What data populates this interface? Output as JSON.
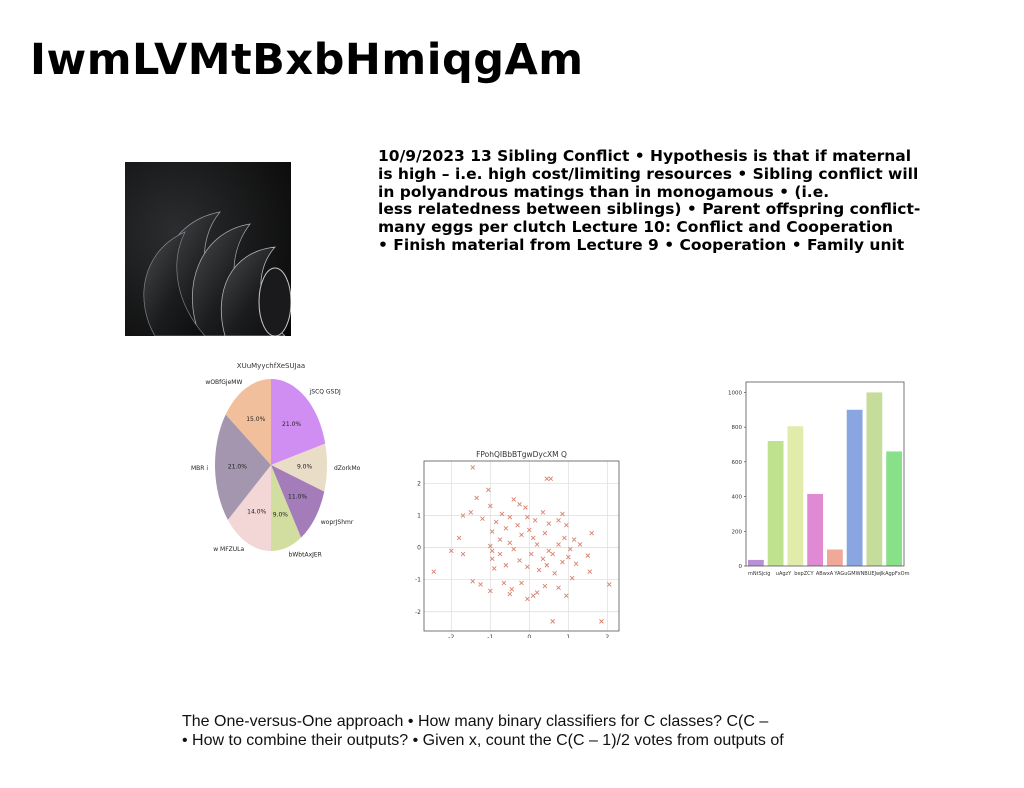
{
  "slide": {
    "title": "IwmLVMtBxbHmiqgAm",
    "text_lines": [
      "10/9/2023 13 Sibling Conflict • Hypothesis is that if maternal",
      "is high – i.e. high cost/limiting resources • Sibling conflict will",
      "in polyandrous matings than in monogamous • (i.e.",
      "less relatedness between siblings) • Parent offspring conflict-",
      "many eggs per clutch Lecture 10: Conflict and Cooperation",
      "• Finish material from Lecture 9 • Cooperation • Family unit"
    ],
    "bottom_lines": [
      "The One-versus-One approach • How many binary classifiers for C classes? C(C –",
      "• How to combine their outputs? • Given x, count the C(C – 1)/2 votes from outputs of"
    ]
  },
  "chart_data": [
    {
      "type": "pie",
      "title": "XUuMyychfXeSUJaa",
      "categories": [
        "jSCQ GSDJ",
        "dZorkMo",
        "woprJShmr",
        "bWbtAxJER",
        "w MFZULa",
        "MBR i",
        "wOBfGjeMW"
      ],
      "values": [
        21.0,
        9.0,
        11.0,
        9.0,
        14.0,
        21.0,
        15.0
      ],
      "labels": [
        "21.0%",
        "9.0%",
        "11.0%",
        "9.0%",
        "14.0%",
        "21.0%",
        "15.0%"
      ],
      "colors": [
        "#d08ef2",
        "#eaddc8",
        "#a47cba",
        "#d2dea0",
        "#f3d6d6",
        "#a396ae",
        "#f2bf9c"
      ]
    },
    {
      "type": "scatter",
      "title": "FPohQIBbBTgwDycXM Q",
      "xlim": [
        -2.7,
        2.3
      ],
      "ylim": [
        -2.6,
        2.7
      ],
      "xticks": [
        -2,
        -1,
        0,
        1,
        2
      ],
      "yticks": [
        -2,
        -1,
        0,
        1,
        2
      ],
      "grid": true,
      "marker": "x",
      "color": "#d9826e",
      "points": [
        [
          -1.45,
          2.5
        ],
        [
          0.45,
          2.15
        ],
        [
          0.55,
          2.15
        ],
        [
          -1.05,
          1.8
        ],
        [
          -1.35,
          1.55
        ],
        [
          -0.4,
          1.5
        ],
        [
          -0.25,
          1.35
        ],
        [
          -1.0,
          1.3
        ],
        [
          -0.1,
          1.25
        ],
        [
          -1.5,
          1.1
        ],
        [
          -1.7,
          1.0
        ],
        [
          -0.7,
          1.05
        ],
        [
          0.35,
          1.1
        ],
        [
          0.85,
          1.05
        ],
        [
          -1.2,
          0.9
        ],
        [
          -0.5,
          0.95
        ],
        [
          -0.05,
          0.95
        ],
        [
          -0.85,
          0.8
        ],
        [
          0.15,
          0.85
        ],
        [
          0.75,
          0.85
        ],
        [
          -0.3,
          0.7
        ],
        [
          0.5,
          0.75
        ],
        [
          0.95,
          0.7
        ],
        [
          -0.6,
          0.6
        ],
        [
          -0.95,
          0.5
        ],
        [
          0.0,
          0.55
        ],
        [
          -0.2,
          0.4
        ],
        [
          0.4,
          0.45
        ],
        [
          1.6,
          0.45
        ],
        [
          -1.8,
          0.3
        ],
        [
          -0.75,
          0.25
        ],
        [
          0.1,
          0.3
        ],
        [
          0.9,
          0.3
        ],
        [
          1.15,
          0.25
        ],
        [
          -0.5,
          0.15
        ],
        [
          -1.0,
          0.05
        ],
        [
          0.2,
          0.1
        ],
        [
          0.75,
          0.1
        ],
        [
          1.3,
          0.1
        ],
        [
          -2.0,
          -0.1
        ],
        [
          -0.95,
          -0.1
        ],
        [
          -0.4,
          -0.05
        ],
        [
          0.5,
          -0.1
        ],
        [
          1.05,
          -0.05
        ],
        [
          -1.7,
          -0.2
        ],
        [
          -0.75,
          -0.2
        ],
        [
          0.05,
          -0.2
        ],
        [
          0.6,
          -0.2
        ],
        [
          1.0,
          -0.3
        ],
        [
          1.5,
          -0.25
        ],
        [
          -0.95,
          -0.35
        ],
        [
          -0.25,
          -0.4
        ],
        [
          0.35,
          -0.35
        ],
        [
          0.85,
          -0.45
        ],
        [
          1.2,
          -0.5
        ],
        [
          -0.6,
          -0.55
        ],
        [
          -0.05,
          -0.6
        ],
        [
          0.45,
          -0.55
        ],
        [
          1.55,
          -0.75
        ],
        [
          -2.45,
          -0.75
        ],
        [
          -0.9,
          -0.65
        ],
        [
          0.25,
          -0.7
        ],
        [
          0.65,
          -0.8
        ],
        [
          1.1,
          -0.95
        ],
        [
          -1.45,
          -1.05
        ],
        [
          -1.25,
          -1.15
        ],
        [
          -0.65,
          -1.1
        ],
        [
          -0.2,
          -1.1
        ],
        [
          0.4,
          -1.2
        ],
        [
          0.75,
          -1.25
        ],
        [
          2.05,
          -1.15
        ],
        [
          -0.45,
          -1.3
        ],
        [
          -1.0,
          -1.35
        ],
        [
          0.2,
          -1.4
        ],
        [
          0.95,
          -1.5
        ],
        [
          -0.5,
          -1.45
        ],
        [
          0.1,
          -1.5
        ],
        [
          -0.05,
          -1.6
        ],
        [
          0.6,
          -2.3
        ],
        [
          1.85,
          -2.3
        ]
      ]
    },
    {
      "type": "bar",
      "categories": [
        "mNtSjcig",
        "uAgzY",
        "bepZCY",
        "ABwxA",
        "YAGuGMWNBUEJwj",
        "lkAgpFxOmPB w",
        "",
        ""
      ],
      "values": [
        35,
        720,
        805,
        415,
        95,
        900,
        1000,
        660
      ],
      "colors": [
        "#b890d6",
        "#bfe28e",
        "#e2ecaa",
        "#e08ad4",
        "#f0a898",
        "#8aa6e0",
        "#c6dc9a",
        "#88e088"
      ],
      "ylim": [
        0,
        1060
      ],
      "yticks": [
        0,
        200,
        400,
        600,
        800,
        1000
      ]
    }
  ]
}
